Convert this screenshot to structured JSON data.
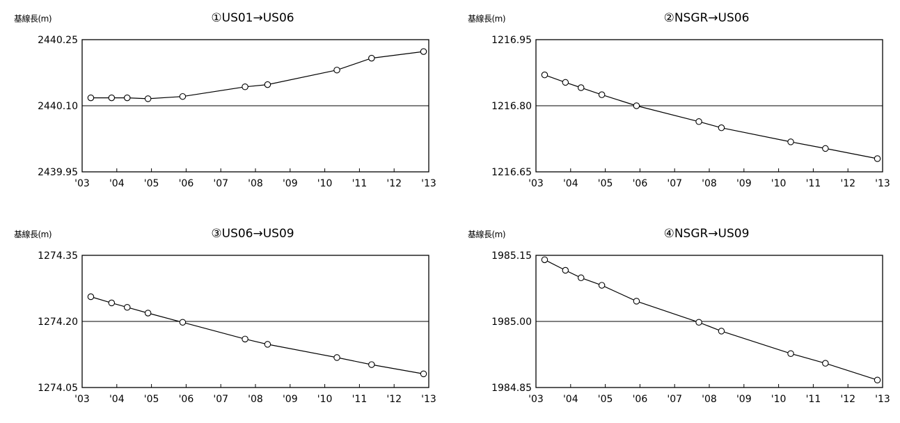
{
  "chart_data": [
    {
      "type": "line",
      "title": "①US01→US06",
      "ylabel": "基線長(m)",
      "ylim": [
        2439.95,
        2440.25
      ],
      "yticks": [
        "2440.25",
        "2440.10",
        "2439.95"
      ],
      "reference_line": 2440.1,
      "xticks": [
        "'03",
        "'04",
        "'05",
        "'06",
        "'07",
        "'08",
        "'09",
        "'10",
        "'11",
        "'12",
        "'13"
      ],
      "xlim": [
        2003,
        2013
      ],
      "series": [
        {
          "x": [
            2003.25,
            2003.85,
            2004.3,
            2004.9,
            2005.9,
            2007.7,
            2008.35,
            2010.35,
            2011.35,
            2012.85
          ],
          "y": [
            2440.118,
            2440.118,
            2440.118,
            2440.116,
            2440.121,
            2440.143,
            2440.148,
            2440.181,
            2440.208,
            2440.223
          ]
        }
      ],
      "grid": false,
      "marker": "circle-open"
    },
    {
      "type": "line",
      "title": "②NSGR→US06",
      "ylabel": "基線長(m)",
      "ylim": [
        1216.65,
        1216.95
      ],
      "yticks": [
        "1216.95",
        "1216.80",
        "1216.65"
      ],
      "reference_line": 1216.8,
      "xticks": [
        "'03",
        "'04",
        "'05",
        "'06",
        "'07",
        "'08",
        "'09",
        "'10",
        "'11",
        "'12",
        "'13"
      ],
      "xlim": [
        2003,
        2013
      ],
      "series": [
        {
          "x": [
            2003.25,
            2003.85,
            2004.3,
            2004.9,
            2005.9,
            2007.7,
            2008.35,
            2010.35,
            2011.35,
            2012.85
          ],
          "y": [
            1216.87,
            1216.853,
            1216.841,
            1216.825,
            1216.8,
            1216.764,
            1216.75,
            1216.718,
            1216.703,
            1216.68
          ]
        }
      ],
      "grid": false,
      "marker": "circle-open"
    },
    {
      "type": "line",
      "title": "③US06→US09",
      "ylabel": "基線長(m)",
      "ylim": [
        1274.05,
        1274.35
      ],
      "yticks": [
        "1274.35",
        "1274.20",
        "1274.05"
      ],
      "reference_line": 1274.2,
      "xticks": [
        "'03",
        "'04",
        "'05",
        "'06",
        "'07",
        "'08",
        "'09",
        "'10",
        "'11",
        "'12",
        "'13"
      ],
      "xlim": [
        2003,
        2013
      ],
      "series": [
        {
          "x": [
            2003.25,
            2003.85,
            2004.3,
            2004.9,
            2005.9,
            2007.7,
            2008.35,
            2010.35,
            2011.35,
            2012.85
          ],
          "y": [
            1274.256,
            1274.242,
            1274.232,
            1274.219,
            1274.198,
            1274.16,
            1274.148,
            1274.118,
            1274.102,
            1274.081
          ]
        }
      ],
      "grid": false,
      "marker": "circle-open"
    },
    {
      "type": "line",
      "title": "④NSGR→US09",
      "ylabel": "基線長(m)",
      "ylim": [
        1984.85,
        1985.15
      ],
      "yticks": [
        "1985.15",
        "1985.00",
        "1984.85"
      ],
      "reference_line": 1985.0,
      "xticks": [
        "'03",
        "'04",
        "'05",
        "'06",
        "'07",
        "'08",
        "'09",
        "'10",
        "'11",
        "'12",
        "'13"
      ],
      "xlim": [
        2003,
        2013
      ],
      "series": [
        {
          "x": [
            2003.25,
            2003.85,
            2004.3,
            2004.9,
            2005.9,
            2007.7,
            2008.35,
            2010.35,
            2011.35,
            2012.85
          ],
          "y": [
            1985.14,
            1985.116,
            1985.099,
            1985.082,
            1985.046,
            1984.998,
            1984.978,
            1984.927,
            1984.905,
            1984.867
          ]
        }
      ],
      "grid": false,
      "marker": "circle-open"
    }
  ]
}
